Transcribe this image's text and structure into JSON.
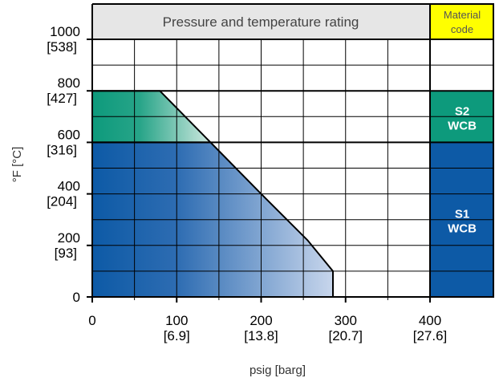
{
  "chart_data": {
    "type": "area",
    "title": "Pressure and temperature rating",
    "xlabel": "psig [barg]",
    "ylabel": "°F [°C]",
    "xlim": [
      0,
      400
    ],
    "ylim": [
      0,
      1000
    ],
    "grid": true,
    "x_ticks": [
      {
        "value": 0,
        "label": "0",
        "sub": ""
      },
      {
        "value": 100,
        "label": "100",
        "sub": "[6.9]"
      },
      {
        "value": 200,
        "label": "200",
        "sub": "[13.8]"
      },
      {
        "value": 300,
        "label": "300",
        "sub": "[20.7]"
      },
      {
        "value": 400,
        "label": "400",
        "sub": "[27.6]"
      }
    ],
    "y_ticks": [
      {
        "value": 0,
        "label": "0",
        "sub": ""
      },
      {
        "value": 200,
        "label": "200",
        "sub": "[93]"
      },
      {
        "value": 400,
        "label": "400",
        "sub": "[204]"
      },
      {
        "value": 600,
        "label": "600",
        "sub": "[316]"
      },
      {
        "value": 800,
        "label": "800",
        "sub": "[427]"
      },
      {
        "value": 1000,
        "label": "1000",
        "sub": "[538]"
      }
    ],
    "series": [
      {
        "name": "S1 WCB",
        "color": "#0d5aa6",
        "x": [
          0,
          285,
          285,
          255,
          200,
          140,
          0
        ],
        "y": [
          0,
          0,
          100,
          220,
          400,
          600,
          600
        ]
      },
      {
        "name": "S2 WCB",
        "color": "#0d9a7c",
        "x": [
          0,
          140,
          80,
          0
        ],
        "y": [
          600,
          600,
          800,
          800
        ]
      }
    ],
    "material_code": {
      "header_line1": "Material",
      "header_line2": "code",
      "header_color": "#ffff00",
      "bands": [
        {
          "line1": "S2",
          "line2": "WCB",
          "y_from": 600,
          "y_to": 800,
          "color": "#0d9a7c"
        },
        {
          "line1": "S1",
          "line2": "WCB",
          "y_from": 0,
          "y_to": 600,
          "color": "#0d5aa6"
        }
      ]
    }
  }
}
